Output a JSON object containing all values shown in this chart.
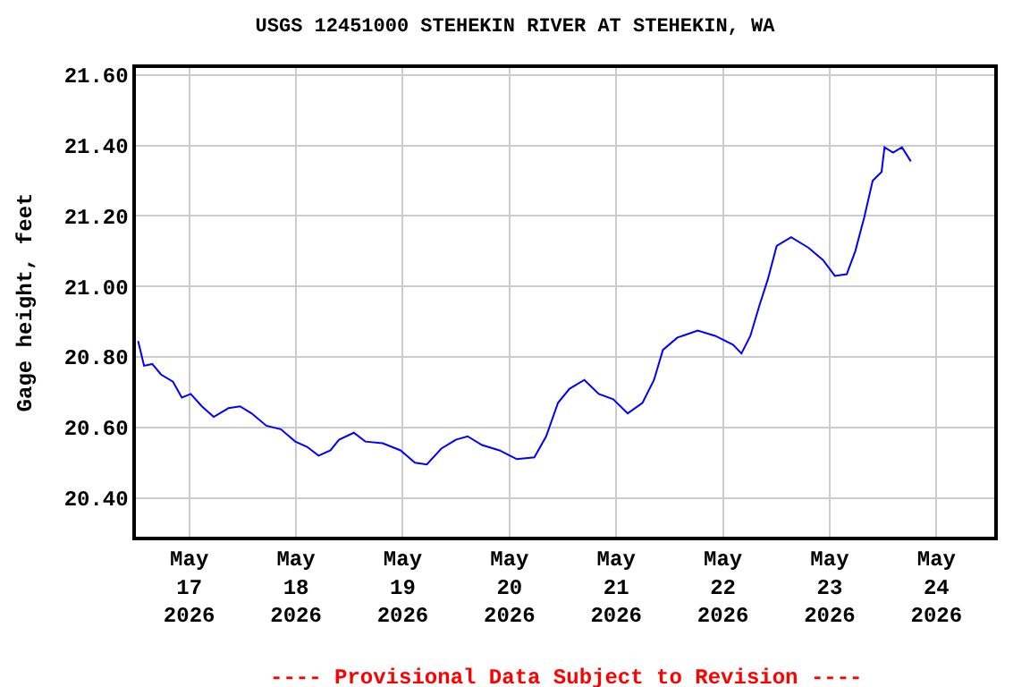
{
  "chart_data": {
    "type": "line",
    "title": "USGS 12451000 STEHEKIN RIVER AT STEHEKIN, WA",
    "ylabel": "Gage height, feet",
    "x": [
      "2026-05-16T12:30",
      "2026-05-16T13:50",
      "2026-05-16T15:40",
      "2026-05-16T17:40",
      "2026-05-16T20:20",
      "2026-05-16T22:20",
      "2026-05-17T00:20",
      "2026-05-17T02:50",
      "2026-05-17T05:30",
      "2026-05-17T08:50",
      "2026-05-17T11:25",
      "2026-05-17T14:00",
      "2026-05-17T17:20",
      "2026-05-17T20:35",
      "2026-05-17T23:50",
      "2026-05-18T02:30",
      "2026-05-18T05:05",
      "2026-05-18T07:45",
      "2026-05-18T09:40",
      "2026-05-18T13:00",
      "2026-05-18T15:35",
      "2026-05-18T19:30",
      "2026-05-18T23:30",
      "2026-05-19T02:45",
      "2026-05-19T05:25",
      "2026-05-19T08:40",
      "2026-05-19T11:55",
      "2026-05-19T14:35",
      "2026-05-19T17:50",
      "2026-05-19T21:45",
      "2026-05-20T01:40",
      "2026-05-20T05:35",
      "2026-05-20T08:15",
      "2026-05-20T10:55",
      "2026-05-20T13:30",
      "2026-05-20T16:50",
      "2026-05-20T20:05",
      "2026-05-20T23:20",
      "2026-05-21T02:35",
      "2026-05-21T05:55",
      "2026-05-21T08:30",
      "2026-05-21T10:30",
      "2026-05-21T13:45",
      "2026-05-21T18:20",
      "2026-05-21T22:15",
      "2026-05-22T02:15",
      "2026-05-22T04:10",
      "2026-05-22T06:10",
      "2026-05-22T08:10",
      "2026-05-22T10:05",
      "2026-05-22T12:05",
      "2026-05-22T15:20",
      "2026-05-22T19:15",
      "2026-05-22T22:30",
      "2026-05-23T01:10",
      "2026-05-23T03:50",
      "2026-05-23T05:45",
      "2026-05-23T07:45",
      "2026-05-23T09:40",
      "2026-05-23T11:40",
      "2026-05-23T12:20",
      "2026-05-23T14:15",
      "2026-05-23T16:15",
      "2026-05-23T18:15"
    ],
    "series": [
      {
        "color": "#0000ff",
        "values": [
          20.845,
          20.775,
          20.78,
          20.75,
          20.73,
          20.685,
          20.695,
          20.66,
          20.63,
          20.655,
          20.66,
          20.64,
          20.605,
          20.595,
          20.56,
          20.545,
          20.52,
          20.535,
          20.565,
          20.585,
          20.56,
          20.555,
          20.535,
          20.5,
          20.495,
          20.54,
          20.565,
          20.575,
          20.55,
          20.535,
          20.51,
          20.515,
          20.575,
          20.67,
          20.71,
          20.735,
          20.695,
          20.68,
          20.64,
          20.67,
          20.735,
          20.82,
          20.855,
          20.875,
          20.86,
          20.835,
          20.81,
          20.86,
          20.945,
          21.02,
          21.115,
          21.14,
          21.11,
          21.075,
          21.03,
          21.035,
          21.1,
          21.195,
          21.3,
          21.325,
          21.395,
          21.38,
          21.395,
          21.355
        ]
      }
    ],
    "xlim": [
      "2026-05-16T12:00",
      "2026-05-24T13:00"
    ],
    "xticks": [
      {
        "value": "2026-05-17",
        "label": "May\n17\n2026"
      },
      {
        "value": "2026-05-18",
        "label": "May\n18\n2026"
      },
      {
        "value": "2026-05-19",
        "label": "May\n19\n2026"
      },
      {
        "value": "2026-05-20",
        "label": "May\n20\n2026"
      },
      {
        "value": "2026-05-21",
        "label": "May\n21\n2026"
      },
      {
        "value": "2026-05-22",
        "label": "May\n22\n2026"
      },
      {
        "value": "2026-05-23",
        "label": "May\n23\n2026"
      },
      {
        "value": "2026-05-24",
        "label": "May\n24\n2026"
      }
    ],
    "ylim": [
      20.29,
      21.62
    ],
    "yticks": [
      {
        "value": 20.4,
        "label": "20.40"
      },
      {
        "value": 20.6,
        "label": "20.60"
      },
      {
        "value": 20.8,
        "label": "20.80"
      },
      {
        "value": 21.0,
        "label": "21.00"
      },
      {
        "value": 21.2,
        "label": "21.20"
      },
      {
        "value": 21.4,
        "label": "21.40"
      },
      {
        "value": 21.6,
        "label": "21.60"
      }
    ],
    "grid": true,
    "marker": "none",
    "line_style": "solid",
    "annotations": [
      "---- Provisional Data Subject to Revision ----"
    ]
  }
}
